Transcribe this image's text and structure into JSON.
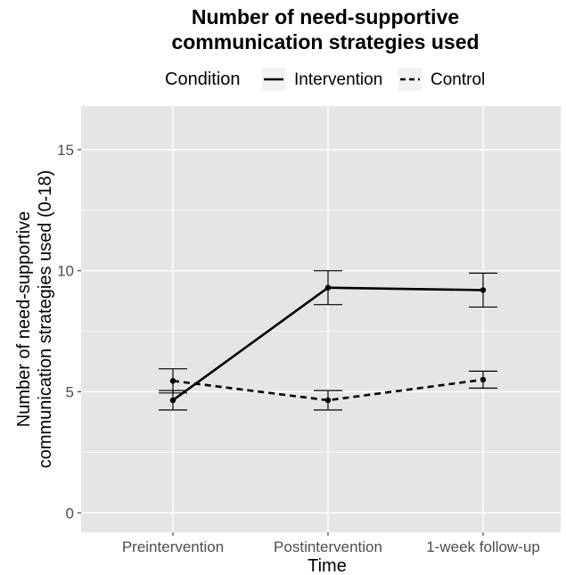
{
  "chart_data": {
    "type": "line",
    "title_lines": [
      "Number of need-supportive",
      "communication strategies used"
    ],
    "xlabel": "Time",
    "ylabel_lines": [
      "Number of need-supportive",
      "communication strategies used (0-18)"
    ],
    "categories": [
      "Preintervention",
      "Postintervention",
      "1-week follow-up"
    ],
    "ylim": [
      -0.8,
      16.8
    ],
    "yticks": [
      0,
      5,
      10,
      15
    ],
    "grid": true,
    "legend": {
      "title": "Condition",
      "placement": "top",
      "entries": [
        "Intervention",
        "Control"
      ]
    },
    "series": [
      {
        "name": "Intervention",
        "line_style": "solid",
        "values": [
          4.65,
          9.3,
          9.2
        ],
        "error_low": [
          4.25,
          8.6,
          8.5
        ],
        "error_high": [
          5.05,
          10.0,
          9.9
        ]
      },
      {
        "name": "Control",
        "line_style": "dashed",
        "values": [
          5.45,
          4.65,
          5.5
        ],
        "error_low": [
          4.95,
          4.25,
          5.15
        ],
        "error_high": [
          5.95,
          5.05,
          5.85
        ]
      }
    ],
    "colors": {
      "panel": "#e5e5e5",
      "grid": "#ffffff",
      "line": "#000000",
      "tick_text": "#4d4d4d"
    }
  }
}
